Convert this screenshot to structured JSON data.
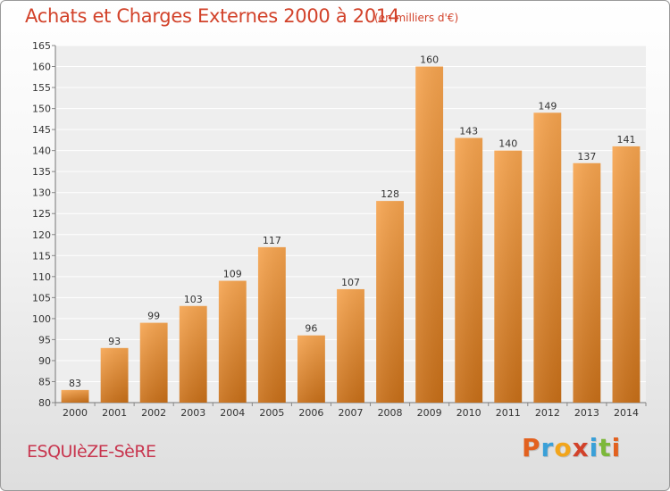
{
  "chart_data": {
    "type": "bar",
    "title": "Achats et Charges Externes 2000 à 2014",
    "subtitle": "(en milliers d'€)",
    "categories": [
      "2000",
      "2001",
      "2002",
      "2003",
      "2004",
      "2005",
      "2006",
      "2007",
      "2008",
      "2009",
      "2010",
      "2011",
      "2012",
      "2013",
      "2014"
    ],
    "values": [
      83,
      93,
      99,
      103,
      109,
      117,
      96,
      107,
      128,
      160,
      143,
      140,
      149,
      137,
      141
    ],
    "ylim": [
      80,
      165
    ],
    "yticks": [
      80,
      85,
      90,
      95,
      100,
      105,
      110,
      115,
      120,
      125,
      130,
      135,
      140,
      145,
      150,
      155,
      160,
      165
    ],
    "grid": true,
    "bar_color_top": "#f6a44f",
    "bar_color_bottom": "#c86f18",
    "title_color": "#d2422a"
  },
  "footer": {
    "commune": "ESQUIèZE-SèRE",
    "logo_letters": [
      {
        "ch": "P",
        "color": "#e2611f"
      },
      {
        "ch": "r",
        "color": "#3aa0d8"
      },
      {
        "ch": "o",
        "color": "#f2a51b"
      },
      {
        "ch": "x",
        "color": "#d2422a"
      },
      {
        "ch": "i",
        "color": "#3aa0d8"
      },
      {
        "ch": "t",
        "color": "#7cb83a"
      },
      {
        "ch": "i",
        "color": "#e2611f"
      }
    ]
  }
}
